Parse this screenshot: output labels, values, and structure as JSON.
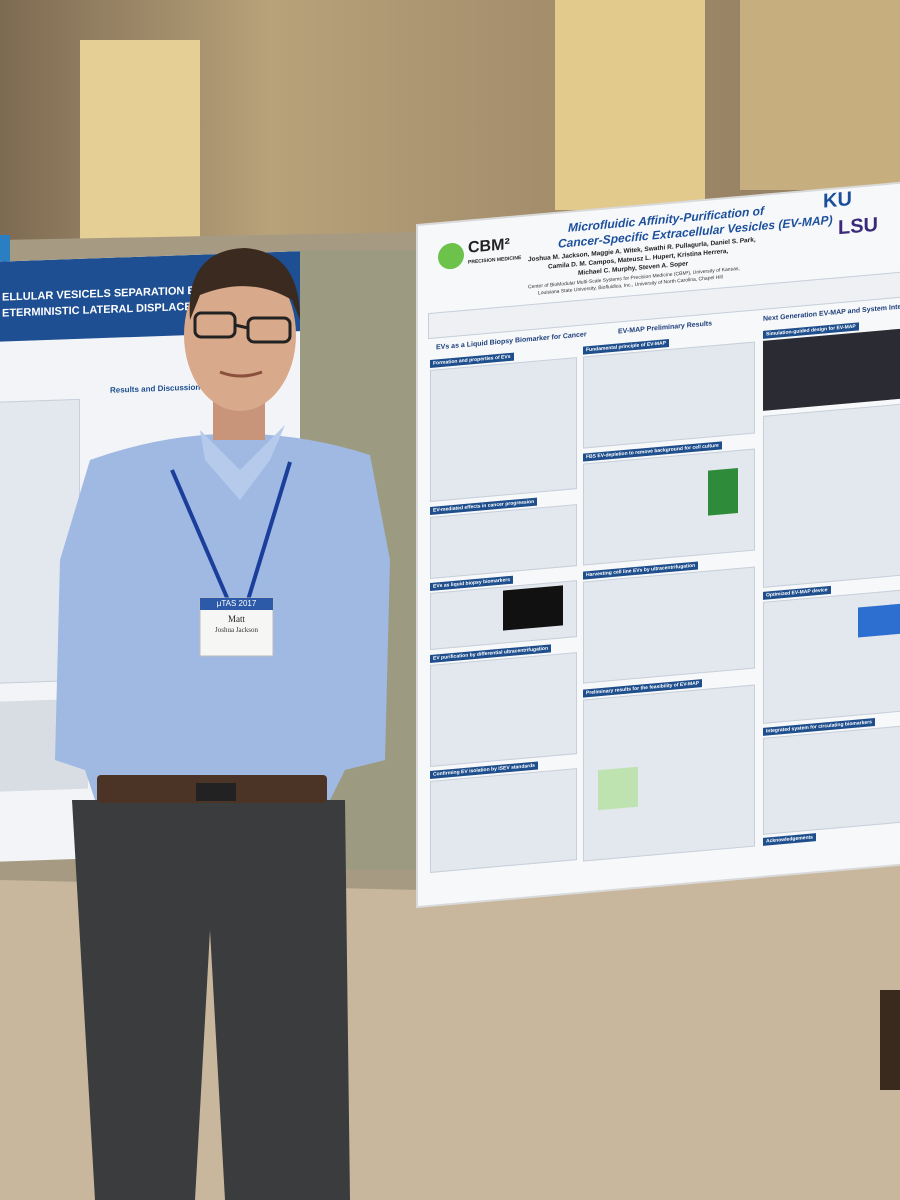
{
  "left_poster": {
    "title_lines": [
      "ELLULAR VESICELS SEPARATION BY ELECTROOS",
      "ETERMINISTIC LATERAL DISPLACEMENT IN NAN"
    ],
    "section_heading": "Results and Discussion"
  },
  "right_poster": {
    "title_lines": [
      "Microfluidic Affinity-Purification of",
      "Cancer-Specific Extracellular Vesicles (EV-MAP)"
    ],
    "author_lines": [
      "Joshua M. Jackson, Maggie A. Witek, Swathi R. Pullagurla, Daniel S. Park,",
      "Camila D. M. Campos, Mateusz L. Hupert, Kristina Herrera,",
      "Michael C. Murphy, Steven A. Soper"
    ],
    "affiliation_lines": [
      "Center of BioModular Multi-Scale Systems for Precision Medicine (CBM²), University of Kansas,",
      "Louisiana State University, Biofluidica, Inc., University of North Carolina, Chapel Hill"
    ],
    "logos": {
      "cbm": "CBM²",
      "cbm_sub": "PRECISION MEDICINE",
      "ku": "KU",
      "lsu": "LSU"
    },
    "column_headings": [
      "EVs as a Liquid Biopsy Biomarker for Cancer",
      "EV-MAP Preliminary Results",
      "Next Generation EV-MAP and System Inte"
    ],
    "section_headings": [
      "Formation and properties of EVs",
      "EV-mediated effects in cancer progression",
      "EVs as liquid biopsy biomarkers",
      "EV purification by differential ultracentrifugation",
      "Confirming EV isolation by ISEV standards",
      "Fundamental principle of EV-MAP",
      "FBS EV-depletion to remove background for cell culture",
      "Harvesting cell line EVs by ultracentrifugation",
      "Preliminary results for the feasibility of EV-MAP",
      "Simulation-guided design for EV-MAP",
      "Optimized EV-MAP device",
      "Integrated system for circulating biomarkers",
      "Acknowledgements"
    ]
  },
  "badge": {
    "event": "μTAS 2017",
    "name": "Matt",
    "full_name": "Joshua Jackson"
  }
}
